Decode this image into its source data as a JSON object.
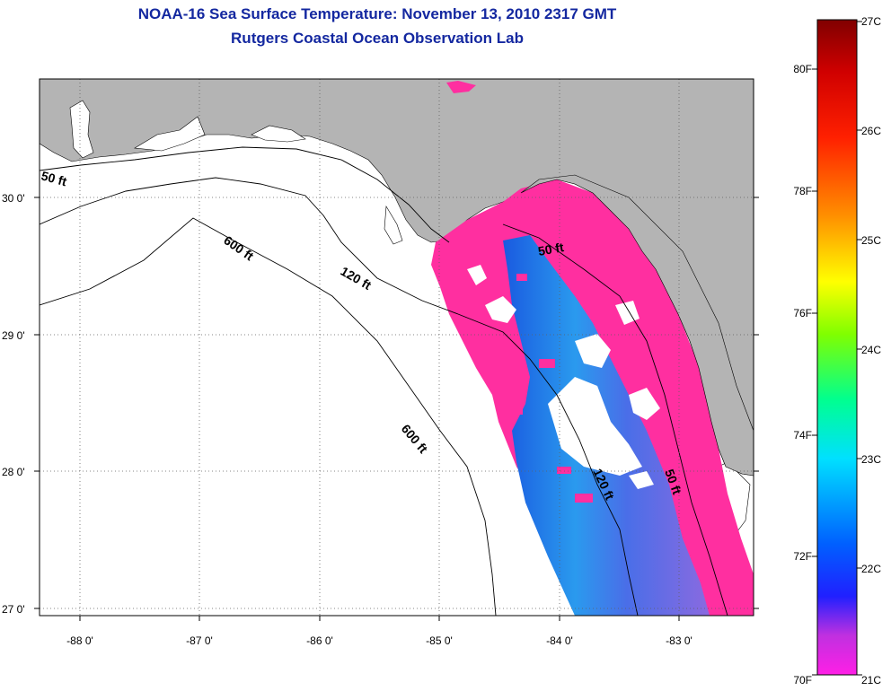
{
  "title": {
    "line1": "NOAA-16 Sea Surface Temperature:  November 13, 2010 2317 GMT",
    "line2": "Rutgers Coastal Ocean Observation Lab"
  },
  "axes": {
    "lon_labels": [
      "-88 0'",
      "-87 0'",
      "-86 0'",
      "-85 0'",
      "-84 0'",
      "-83 0'"
    ],
    "lat_labels": [
      "30 0'",
      "29 0'",
      "28 0'",
      "27 0'"
    ]
  },
  "contours": {
    "labels": [
      "50 ft",
      "600 ft",
      "120 ft",
      "600 ft",
      "50 ft",
      "120 ft",
      "50 ft"
    ]
  },
  "colorbar": {
    "celsius": [
      "27C",
      "26C",
      "25C",
      "24C",
      "23C",
      "22C",
      "21C"
    ],
    "fahrenheit": [
      "80F",
      "78F",
      "76F",
      "74F",
      "72F",
      "70F"
    ]
  },
  "colors": {
    "land": "#b4b4b4",
    "ocean": "#ffffff",
    "sst_warm_shelf": "#ff2fa0",
    "sst_cool": "#1e6ee6",
    "title": "#1428a0"
  }
}
